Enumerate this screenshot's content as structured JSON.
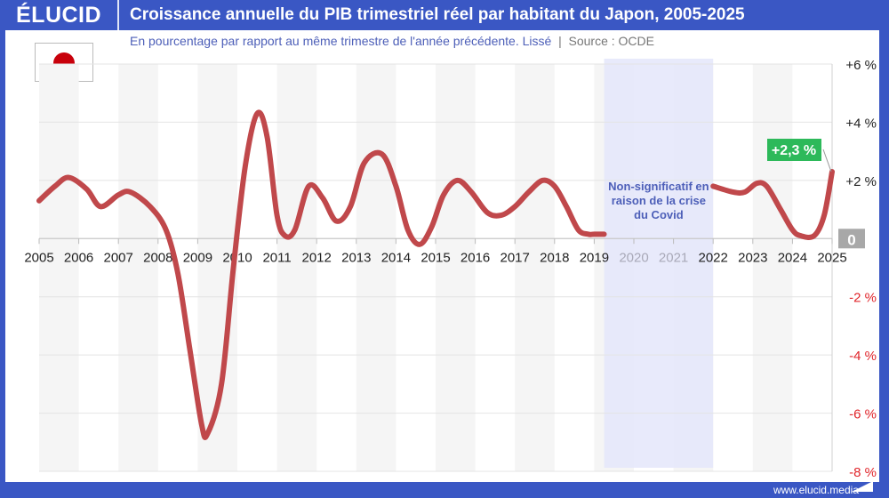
{
  "header": {
    "logo": "ÉLUCID",
    "title": "Croissance annuelle du PIB trimestriel réel par habitant du Japon, 2005-2025",
    "subtitle": "En pourcentage par rapport au même trimestre de l'année précédente. Lissé",
    "separator": "|",
    "source": "Source : OCDE"
  },
  "flag": {
    "country": "Japan",
    "icon": "japan-flag-icon"
  },
  "annotation": {
    "covid_lines": [
      "Non-significatif en",
      "raison de la crise",
      "du Covid"
    ],
    "last_value_label": "+2,3 %",
    "zero_label": "0"
  },
  "footer": {
    "url": "www.elucid.media"
  },
  "colors": {
    "brand": "#3a57c4",
    "line": "#c0484b",
    "covid_band": "#e6e8fb",
    "covid_text": "#4d5fb8",
    "label_green": "#2db95a",
    "neg_tick": "#e0242a",
    "zero_badge": "#a8a8a8"
  },
  "chart_data": {
    "type": "line",
    "title": "Croissance annuelle du PIB trimestriel réel par habitant du Japon, 2005-2025",
    "subtitle": "En pourcentage par rapport au même trimestre de l'année précédente. Lissé",
    "xlabel": "",
    "ylabel": "%",
    "x_ticks": [
      "2005",
      "2006",
      "2007",
      "2008",
      "2009",
      "2010",
      "2011",
      "2012",
      "2013",
      "2014",
      "2015",
      "2016",
      "2017",
      "2018",
      "2019",
      "2020",
      "2021",
      "2022",
      "2023",
      "2024",
      "2025"
    ],
    "y_ticks": [
      "+6 %",
      "+4 %",
      "+2 %",
      "0",
      "-2 %",
      "-4 %",
      "-6 %",
      "-8 %"
    ],
    "ylim": [
      -8,
      6
    ],
    "grid": true,
    "excluded_range": {
      "from": 2019.25,
      "to": 2022.0,
      "note": "Non-significatif en raison de la crise du Covid"
    },
    "series": [
      {
        "name": "Japon",
        "segments": [
          {
            "x": [
              2005.0,
              2005.4,
              2005.75,
              2006.2,
              2006.55,
              2007.0,
              2007.3,
              2007.8,
              2008.2,
              2008.5,
              2008.8,
              2009.1,
              2009.25,
              2009.6,
              2009.9,
              2010.2,
              2010.5,
              2010.75,
              2011.0,
              2011.2,
              2011.45,
              2011.8,
              2012.15,
              2012.5,
              2012.85,
              2013.2,
              2013.65,
              2014.0,
              2014.3,
              2014.6,
              2014.9,
              2015.2,
              2015.55,
              2015.9,
              2016.3,
              2016.65,
              2017.0,
              2017.35,
              2017.7,
              2018.0,
              2018.3,
              2018.6,
              2018.85,
              2019.0,
              2019.25
            ],
            "y": [
              1.3,
              1.8,
              2.1,
              1.7,
              1.1,
              1.5,
              1.6,
              1.1,
              0.3,
              -1.2,
              -3.8,
              -6.4,
              -6.7,
              -5.0,
              -1.0,
              2.5,
              4.3,
              3.5,
              0.8,
              0.1,
              0.3,
              1.8,
              1.4,
              0.6,
              1.1,
              2.6,
              2.9,
              1.8,
              0.3,
              -0.2,
              0.4,
              1.5,
              2.0,
              1.6,
              0.9,
              0.8,
              1.1,
              1.6,
              2.0,
              1.8,
              1.1,
              0.3,
              0.15,
              0.15,
              0.15
            ]
          },
          {
            "x": [
              2022.0,
              2022.5,
              2022.8,
              2023.1,
              2023.35,
              2023.7,
              2024.0,
              2024.2,
              2024.55,
              2024.8,
              2025.0
            ],
            "y": [
              1.8,
              1.6,
              1.6,
              1.9,
              1.8,
              1.0,
              0.3,
              0.1,
              0.1,
              0.8,
              2.3
            ]
          }
        ],
        "last_value": 2.3
      }
    ]
  }
}
